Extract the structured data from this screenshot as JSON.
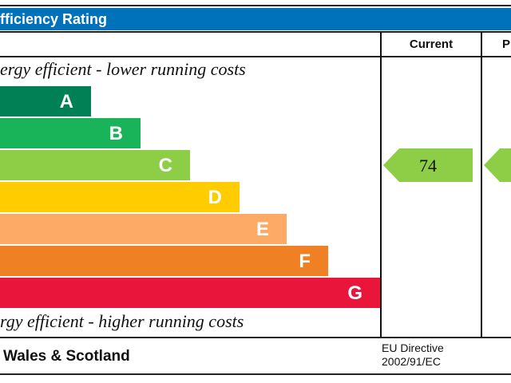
{
  "chart_data": {
    "type": "bar",
    "title": "fficiency Rating",
    "columns": [
      "Current",
      "P"
    ],
    "top_note": "ergy efficient - lower running costs",
    "bottom_note": "rgy efficient - higher running costs",
    "bands": [
      {
        "label": "A",
        "color": "#008054"
      },
      {
        "label": "B",
        "color": "#19b459"
      },
      {
        "label": "C",
        "color": "#8dce46"
      },
      {
        "label": "D",
        "color": "#ffcc00"
      },
      {
        "label": "E",
        "color": "#fcaa65"
      },
      {
        "label": "F",
        "color": "#ef8023"
      },
      {
        "label": "G",
        "color": "#e9153b"
      }
    ],
    "current": {
      "value": "74",
      "band": "C",
      "color": "#8dce46"
    },
    "potential": {
      "band": "C",
      "color": "#8dce46"
    },
    "footer_region": "Wales & Scotland",
    "footer_directive": [
      "EU Directive",
      "2002/91/EC"
    ]
  }
}
